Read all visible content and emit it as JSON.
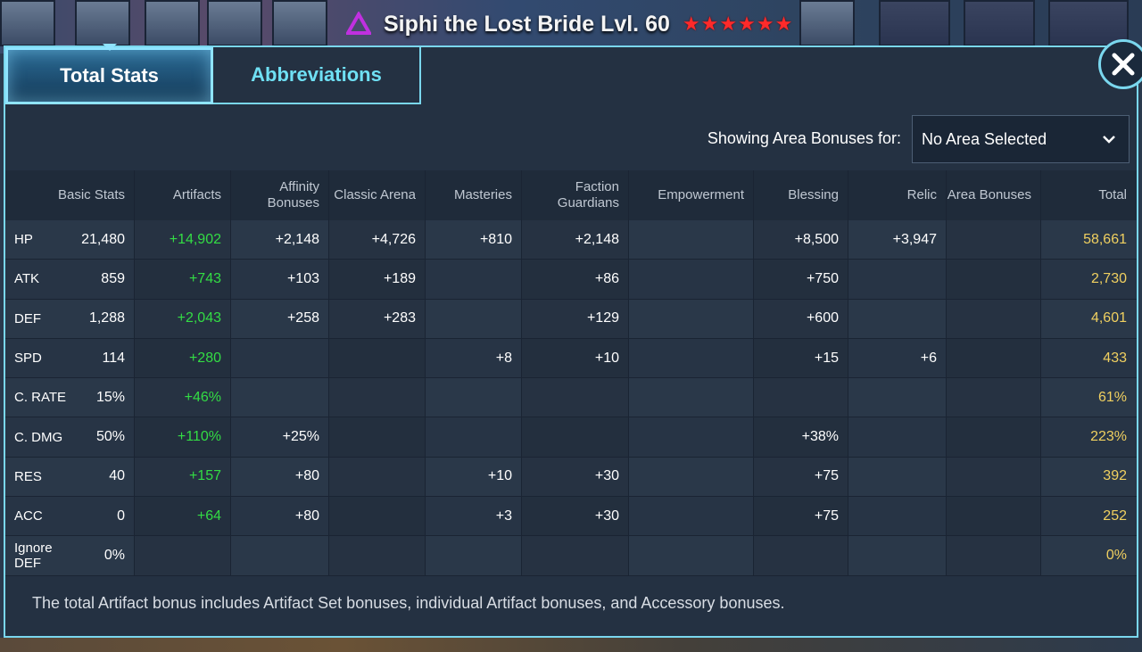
{
  "header": {
    "hero_name": "Siphi the Lost Bride Lvl. 60",
    "stars": 6,
    "rank_icon": "triangle-affinity-icon",
    "accent_color": "#c030e0"
  },
  "tabs": [
    {
      "label": "Total Stats",
      "active": true
    },
    {
      "label": "Abbreviations",
      "active": false
    }
  ],
  "close_icon": "close-x-icon",
  "area": {
    "label": "Showing Area Bonuses for:",
    "selected": "No Area Selected"
  },
  "table": {
    "columns": [
      "Basic Stats",
      "Artifacts",
      "Affinity Bonuses",
      "Classic Arena",
      "Masteries",
      "Faction Guardians",
      "Empowerment",
      "Blessing",
      "Relic",
      "Area Bonuses",
      "Total"
    ],
    "columns_display": {
      "basic": "Basic Stats",
      "artifacts": "Artifacts",
      "affinity_1": "Affinity",
      "affinity_2": "Bonuses",
      "classic": "Classic Arena",
      "masteries": "Masteries",
      "faction_1": "Faction",
      "faction_2": "Guardians",
      "empowerment": "Empowerment",
      "blessing": "Blessing",
      "relic": "Relic",
      "area": "Area Bonuses",
      "total": "Total"
    },
    "rows": [
      {
        "stat": "HP",
        "basic": "21,480",
        "artifacts": "+14,902",
        "affinity": "+2,148",
        "classic": "+4,726",
        "masteries": "+810",
        "faction": "+2,148",
        "empowerment": "",
        "blessing": "+8,500",
        "relic": "+3,947",
        "area": "",
        "total": "58,661"
      },
      {
        "stat": "ATK",
        "basic": "859",
        "artifacts": "+743",
        "affinity": "+103",
        "classic": "+189",
        "masteries": "",
        "faction": "+86",
        "empowerment": "",
        "blessing": "+750",
        "relic": "",
        "area": "",
        "total": "2,730"
      },
      {
        "stat": "DEF",
        "basic": "1,288",
        "artifacts": "+2,043",
        "affinity": "+258",
        "classic": "+283",
        "masteries": "",
        "faction": "+129",
        "empowerment": "",
        "blessing": "+600",
        "relic": "",
        "area": "",
        "total": "4,601"
      },
      {
        "stat": "SPD",
        "basic": "114",
        "artifacts": "+280",
        "affinity": "",
        "classic": "",
        "masteries": "+8",
        "faction": "+10",
        "empowerment": "",
        "blessing": "+15",
        "relic": "+6",
        "area": "",
        "total": "433"
      },
      {
        "stat": "C. RATE",
        "basic": "15%",
        "artifacts": "+46%",
        "affinity": "",
        "classic": "",
        "masteries": "",
        "faction": "",
        "empowerment": "",
        "blessing": "",
        "relic": "",
        "area": "",
        "total": "61%"
      },
      {
        "stat": "C. DMG",
        "basic": "50%",
        "artifacts": "+110%",
        "affinity": "+25%",
        "classic": "",
        "masteries": "",
        "faction": "",
        "empowerment": "",
        "blessing": "+38%",
        "relic": "",
        "area": "",
        "total": "223%"
      },
      {
        "stat": "RES",
        "basic": "40",
        "artifacts": "+157",
        "affinity": "+80",
        "classic": "",
        "masteries": "+10",
        "faction": "+30",
        "empowerment": "",
        "blessing": "+75",
        "relic": "",
        "area": "",
        "total": "392"
      },
      {
        "stat": "ACC",
        "basic": "0",
        "artifacts": "+64",
        "affinity": "+80",
        "classic": "",
        "masteries": "+3",
        "faction": "+30",
        "empowerment": "",
        "blessing": "+75",
        "relic": "",
        "area": "",
        "total": "252"
      },
      {
        "stat": "Ignore DEF",
        "basic": "0%",
        "artifacts": "",
        "affinity": "",
        "classic": "",
        "masteries": "",
        "faction": "",
        "empowerment": "",
        "blessing": "",
        "relic": "",
        "area": "",
        "total": "0%"
      }
    ]
  },
  "footnote": "The total Artifact bonus includes Artifact Set bonuses, individual Artifact bonuses, and Accessory bonuses.",
  "colors": {
    "artifact_green": "#33dd44",
    "total_gold": "#f0d060",
    "border_cyan": "#7ad7ee",
    "star_red": "#ff2a2a"
  }
}
